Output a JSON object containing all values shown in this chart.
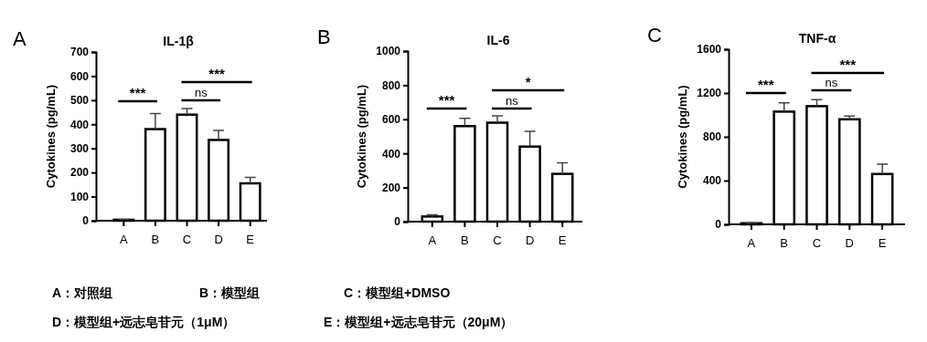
{
  "chart_data": [
    {
      "type": "bar",
      "title": "IL-1β",
      "ylabel": "Cytokines (pg/mL)",
      "categories": [
        "A",
        "B",
        "C",
        "D",
        "E"
      ],
      "values": [
        4,
        380,
        440,
        335,
        155
      ],
      "errors": [
        2,
        65,
        25,
        40,
        25
      ],
      "color": "#ffffff",
      "ylim": [
        0,
        700
      ],
      "yticks": [
        0,
        100,
        200,
        300,
        400,
        500,
        600,
        700
      ],
      "grid": false,
      "annotations": [
        "A",
        "***",
        "ns",
        "***"
      ]
    },
    {
      "type": "bar",
      "title": "IL-6",
      "ylabel": "Cytokines (pg/mL)",
      "categories": [
        "A",
        "B",
        "C",
        "D",
        "E"
      ],
      "values": [
        30,
        560,
        580,
        440,
        280
      ],
      "errors": [
        10,
        45,
        40,
        90,
        65
      ],
      "color": "#ffffff",
      "ylim": [
        0,
        1000
      ],
      "yticks": [
        0,
        200,
        400,
        600,
        800,
        1000
      ],
      "grid": false,
      "annotations": [
        "B",
        "***",
        "ns",
        "*"
      ]
    },
    {
      "type": "bar",
      "title": "TNF-α",
      "ylabel": "Cytokines (pg/mL)",
      "categories": [
        "A",
        "B",
        "C",
        "D",
        "E"
      ],
      "values": [
        10,
        1030,
        1080,
        960,
        460
      ],
      "errors": [
        5,
        80,
        60,
        30,
        90
      ],
      "color": "#ffffff",
      "ylim": [
        0,
        1600
      ],
      "yticks": [
        0,
        400,
        800,
        1200,
        1600
      ],
      "grid": false,
      "annotations": [
        "C",
        "***",
        "ns",
        "***"
      ]
    },
    {
      "type": "other",
      "annotations": [
        "A：对照组",
        "B：模型组",
        "C：模型组+DMSO",
        "D：模型组+远志皂苷元（1μM）",
        "E：模型组+远志皂苷元（20μM）"
      ]
    }
  ]
}
